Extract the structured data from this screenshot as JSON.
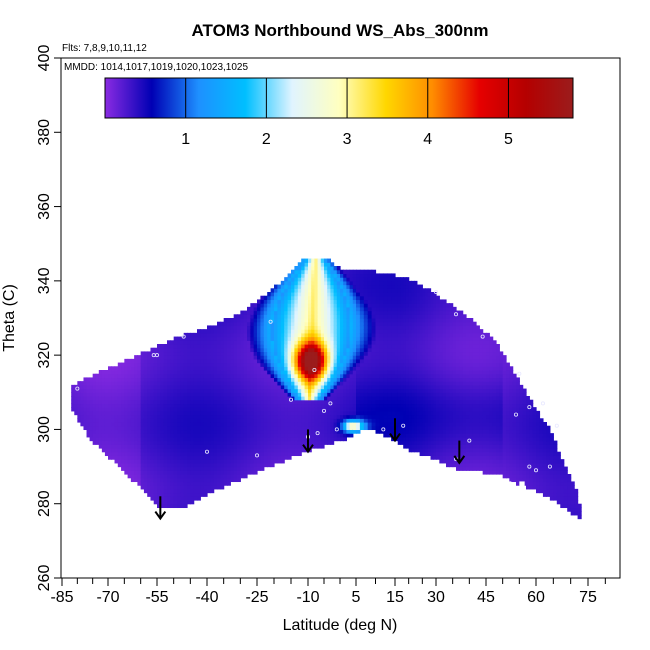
{
  "chart_data": {
    "type": "heatmap",
    "title": "ATOM3 Northbound WS_Abs_300nm",
    "flights_note": "Flts: 7,8,9,10,11,12",
    "dates_note": "MMDD: 1014,1017,1019,1020,1023,1025",
    "xlabel": "Latitude (deg N)",
    "ylabel": "Theta (C)",
    "xlim": [
      -85,
      85
    ],
    "ylim": [
      260,
      400
    ],
    "x_tick_labels": [
      "-85",
      "-70",
      "-55",
      "-40",
      "-25",
      "-10",
      "5",
      "15",
      "30",
      "45",
      "60",
      "75"
    ],
    "x_tick_values": [
      -85,
      -70,
      -55,
      -40,
      -25,
      -10,
      5,
      15,
      30,
      45,
      60,
      75
    ],
    "x_minor_step": 5,
    "y_tick_values": [
      260,
      280,
      300,
      320,
      340,
      360,
      380,
      400
    ],
    "colorbar": {
      "range": [
        0,
        5.8
      ],
      "tick_values": [
        1,
        2,
        3,
        4,
        5
      ],
      "tick_labels": [
        "1",
        "2",
        "3",
        "4",
        "5"
      ],
      "placement": "top-inside",
      "colors": [
        "#8a2be2",
        "#0000b4",
        "#1e90ff",
        "#00bfff",
        "#e0f4ff",
        "#ffffc0",
        "#ffd700",
        "#ff8c00",
        "#e60000",
        "#b40000",
        "#9b1c1c"
      ]
    },
    "background_value": 0.3,
    "arrows_latitude": [
      -54,
      -10,
      15,
      37
    ],
    "hotspot": {
      "lat": -9,
      "theta": 319,
      "value": 5.6
    },
    "grid": false,
    "legend": "none"
  }
}
